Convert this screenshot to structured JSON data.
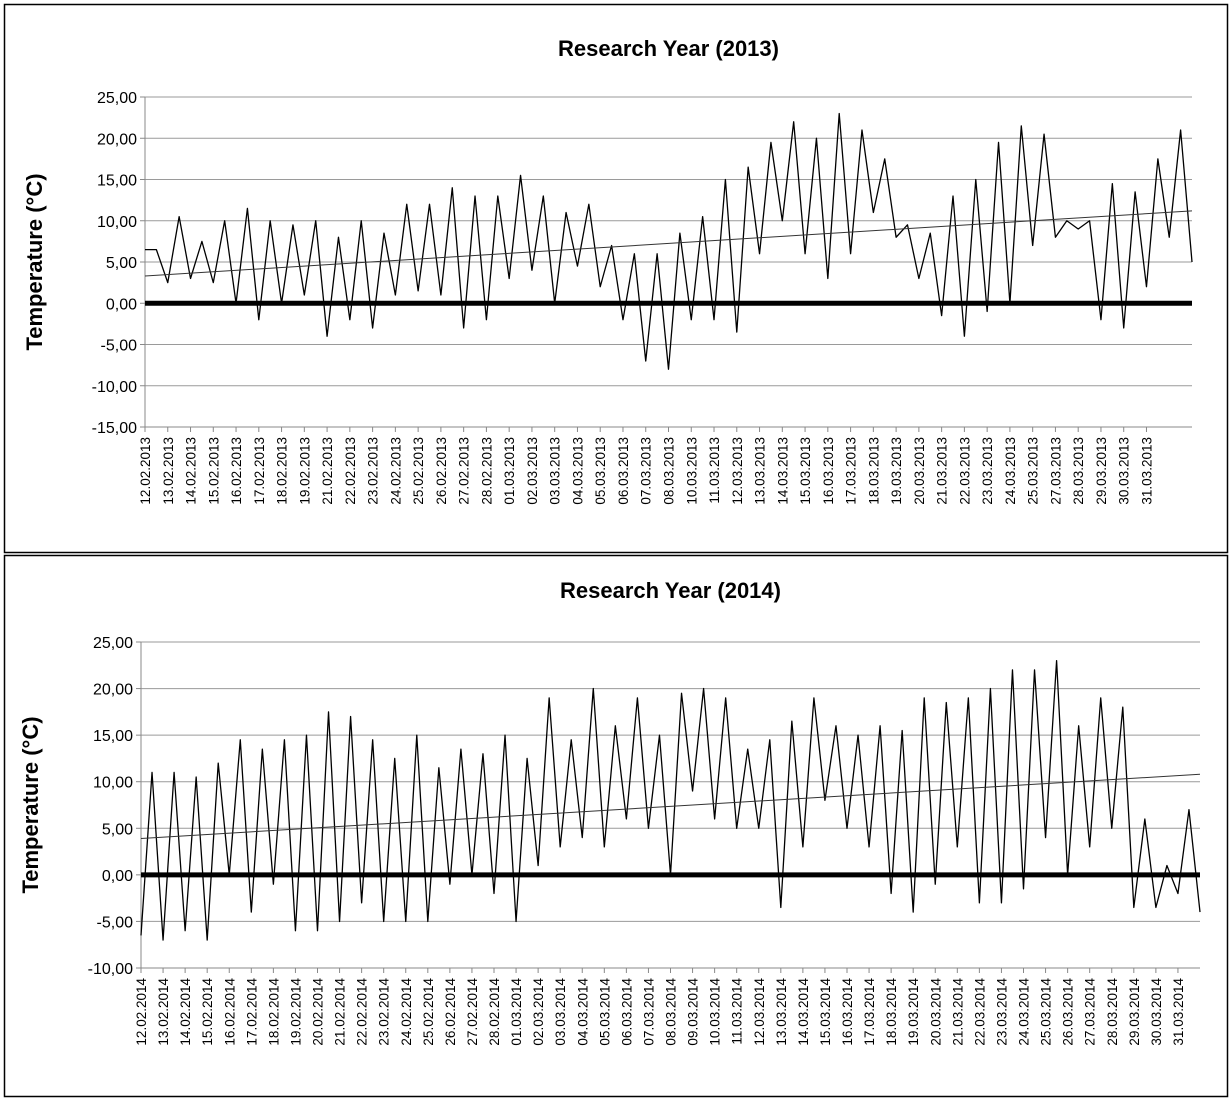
{
  "chart_data": [
    {
      "type": "line",
      "title": "Research Year (2013)",
      "y_label": "Temperature (°C)",
      "ylim": [
        -15,
        25
      ],
      "yticks": [
        {
          "value": -15,
          "label": "-15,00"
        },
        {
          "value": -10,
          "label": "-10,00"
        },
        {
          "value": -5,
          "label": "-5,00"
        },
        {
          "value": 0,
          "label": "0,00"
        },
        {
          "value": 5,
          "label": "5,00"
        },
        {
          "value": 10,
          "label": "10,00"
        },
        {
          "value": 15,
          "label": "15,00"
        },
        {
          "value": 20,
          "label": "20,00"
        },
        {
          "value": 25,
          "label": "25,00"
        }
      ],
      "xlim": [
        0,
        46
      ],
      "xticks": [
        {
          "value": 0,
          "label": "12.02.2013"
        },
        {
          "value": 1,
          "label": "13.02.2013"
        },
        {
          "value": 2,
          "label": "14.02.2013"
        },
        {
          "value": 3,
          "label": "15.02.2013"
        },
        {
          "value": 4,
          "label": "16.02.2013"
        },
        {
          "value": 5,
          "label": "17.02.2013"
        },
        {
          "value": 6,
          "label": "18.02.2013"
        },
        {
          "value": 7,
          "label": "19.02.2013"
        },
        {
          "value": 8,
          "label": "21.02.2013"
        },
        {
          "value": 9,
          "label": "22.02.2013"
        },
        {
          "value": 10,
          "label": "23.02.2013"
        },
        {
          "value": 11,
          "label": "24.02.2013"
        },
        {
          "value": 12,
          "label": "25.02.2013"
        },
        {
          "value": 13,
          "label": "26.02.2013"
        },
        {
          "value": 14,
          "label": "27.02.2013"
        },
        {
          "value": 15,
          "label": "28.02.2013"
        },
        {
          "value": 16,
          "label": "01.03.2013"
        },
        {
          "value": 17,
          "label": "02.03.2013"
        },
        {
          "value": 18,
          "label": "03.03.2013"
        },
        {
          "value": 19,
          "label": "04.03.2013"
        },
        {
          "value": 20,
          "label": "05.03.2013"
        },
        {
          "value": 21,
          "label": "06.03.2013"
        },
        {
          "value": 22,
          "label": "07.03.2013"
        },
        {
          "value": 23,
          "label": "08.03.2013"
        },
        {
          "value": 24,
          "label": "10.03.2013"
        },
        {
          "value": 25,
          "label": "11.03.2013"
        },
        {
          "value": 26,
          "label": "12.03.2013"
        },
        {
          "value": 27,
          "label": "13.03.2013"
        },
        {
          "value": 28,
          "label": "14.03.2013"
        },
        {
          "value": 29,
          "label": "15.03.2013"
        },
        {
          "value": 30,
          "label": "16.03.2013"
        },
        {
          "value": 31,
          "label": "17.03.2013"
        },
        {
          "value": 32,
          "label": "18.03.2013"
        },
        {
          "value": 33,
          "label": "19.03.2013"
        },
        {
          "value": 34,
          "label": "20.03.2013"
        },
        {
          "value": 35,
          "label": "21.03.2013"
        },
        {
          "value": 36,
          "label": "22.03.2013"
        },
        {
          "value": 37,
          "label": "23.03.2013"
        },
        {
          "value": 38,
          "label": "24.03.2013"
        },
        {
          "value": 39,
          "label": "25.03.2013"
        },
        {
          "value": 40,
          "label": "27.03.2013"
        },
        {
          "value": 41,
          "label": "28.03.2013"
        },
        {
          "value": 42,
          "label": "29.03.2013"
        },
        {
          "value": 43,
          "label": "30.03.2013"
        },
        {
          "value": 44,
          "label": "31.03.2013"
        }
      ],
      "grid": true,
      "x": [
        0,
        0.5,
        1,
        1.5,
        2,
        2.5,
        3,
        3.5,
        4,
        4.5,
        5,
        5.5,
        6,
        6.5,
        7,
        7.5,
        8,
        8.5,
        9,
        9.5,
        10,
        10.5,
        11,
        11.5,
        12,
        12.5,
        13,
        13.5,
        14,
        14.5,
        15,
        15.5,
        16,
        16.5,
        17,
        17.5,
        18,
        18.5,
        19,
        19.5,
        20,
        20.5,
        21,
        21.5,
        22,
        22.5,
        23,
        23.5,
        24,
        24.5,
        25,
        25.5,
        26,
        26.5,
        27,
        27.5,
        28,
        28.5,
        29,
        29.5,
        30,
        30.5,
        31,
        31.5,
        32,
        32.5,
        33,
        33.5,
        34,
        34.5,
        35,
        35.5,
        36,
        36.5,
        37,
        37.5,
        38,
        38.5,
        39,
        39.5,
        40,
        40.5,
        41,
        41.5,
        42,
        42.5,
        43,
        43.5,
        44,
        44.5,
        45,
        45.5,
        46
      ],
      "series": [
        {
          "color": "#000000",
          "values": [
            6.5,
            6.5,
            2.5,
            10.5,
            3,
            7.5,
            2.5,
            10,
            0,
            11.5,
            -2,
            10,
            0,
            9.5,
            1,
            10,
            -4,
            8,
            -2,
            10,
            -3,
            8.5,
            1,
            12,
            1.5,
            12,
            1,
            14,
            -3,
            13,
            -2,
            13,
            3,
            15.5,
            4,
            13,
            0,
            11,
            4.5,
            12,
            2,
            7,
            -2,
            6,
            -7,
            6,
            -8,
            8.5,
            -2,
            10.5,
            -2,
            15,
            -3.5,
            16.5,
            6,
            19.5,
            10,
            22,
            6,
            20,
            3,
            23,
            6,
            21,
            11,
            17.5,
            8,
            9.5,
            3,
            8.5,
            -1.5,
            13,
            -4,
            15,
            -1,
            19.5,
            0,
            21.5,
            7,
            20.5,
            8,
            10,
            9,
            10,
            -2,
            14.5,
            -3,
            13.5,
            2,
            17.5,
            8,
            21,
            5
          ]
        }
      ],
      "trendline": {
        "x": [
          0,
          46
        ],
        "values": [
          3.3,
          11.2
        ]
      }
    },
    {
      "type": "line",
      "title": "Research Year (2014)",
      "y_label": "Temperature (°C)",
      "ylim": [
        -10,
        25
      ],
      "yticks": [
        {
          "value": -10,
          "label": "-10,00"
        },
        {
          "value": -5,
          "label": "-5,00"
        },
        {
          "value": 0,
          "label": "0,00"
        },
        {
          "value": 5,
          "label": "5,00"
        },
        {
          "value": 10,
          "label": "10,00"
        },
        {
          "value": 15,
          "label": "15,00"
        },
        {
          "value": 20,
          "label": "20,00"
        },
        {
          "value": 25,
          "label": "25,00"
        }
      ],
      "xlim": [
        0,
        48
      ],
      "xticks": [
        {
          "value": 0,
          "label": "12.02.2014"
        },
        {
          "value": 1,
          "label": "13.02.2014"
        },
        {
          "value": 2,
          "label": "14.02.2014"
        },
        {
          "value": 3,
          "label": "15.02.2014"
        },
        {
          "value": 4,
          "label": "16.02.2014"
        },
        {
          "value": 5,
          "label": "17.02.2014"
        },
        {
          "value": 6,
          "label": "18.02.2014"
        },
        {
          "value": 7,
          "label": "19.02.2014"
        },
        {
          "value": 8,
          "label": "20.02.2014"
        },
        {
          "value": 9,
          "label": "21.02.2014"
        },
        {
          "value": 10,
          "label": "22.02.2014"
        },
        {
          "value": 11,
          "label": "23.02.2014"
        },
        {
          "value": 12,
          "label": "24.02.2014"
        },
        {
          "value": 13,
          "label": "25.02.2014"
        },
        {
          "value": 14,
          "label": "26.02.2014"
        },
        {
          "value": 15,
          "label": "27.02.2014"
        },
        {
          "value": 16,
          "label": "28.02.2014"
        },
        {
          "value": 17,
          "label": "01.03.2014"
        },
        {
          "value": 18,
          "label": "02.03.2014"
        },
        {
          "value": 19,
          "label": "03.03.2014"
        },
        {
          "value": 20,
          "label": "04.03.2014"
        },
        {
          "value": 21,
          "label": "05.03.2014"
        },
        {
          "value": 22,
          "label": "06.03.2014"
        },
        {
          "value": 23,
          "label": "07.03.2014"
        },
        {
          "value": 24,
          "label": "08.03.2014"
        },
        {
          "value": 25,
          "label": "09.03.2014"
        },
        {
          "value": 26,
          "label": "10.03.2014"
        },
        {
          "value": 27,
          "label": "11.03.2014"
        },
        {
          "value": 28,
          "label": "12.03.2014"
        },
        {
          "value": 29,
          "label": "13.03.2014"
        },
        {
          "value": 30,
          "label": "14.03.2014"
        },
        {
          "value": 31,
          "label": "15.03.2014"
        },
        {
          "value": 32,
          "label": "16.03.2014"
        },
        {
          "value": 33,
          "label": "17.03.2014"
        },
        {
          "value": 34,
          "label": "18.03.2014"
        },
        {
          "value": 35,
          "label": "19.03.2014"
        },
        {
          "value": 36,
          "label": "20.03.2014"
        },
        {
          "value": 37,
          "label": "21.03.2014"
        },
        {
          "value": 38,
          "label": "22.03.2014"
        },
        {
          "value": 39,
          "label": "23.03.2014"
        },
        {
          "value": 40,
          "label": "24.03.2014"
        },
        {
          "value": 41,
          "label": "25.03.2014"
        },
        {
          "value": 42,
          "label": "26.03.2014"
        },
        {
          "value": 43,
          "label": "27.03.2014"
        },
        {
          "value": 44,
          "label": "28.03.2014"
        },
        {
          "value": 45,
          "label": "29.03.2014"
        },
        {
          "value": 46,
          "label": "30.03.2014"
        },
        {
          "value": 47,
          "label": "31.03.2014"
        }
      ],
      "grid": true,
      "x": [
        0,
        0.5,
        1,
        1.5,
        2,
        2.5,
        3,
        3.5,
        4,
        4.5,
        5,
        5.5,
        6,
        6.5,
        7,
        7.5,
        8,
        8.5,
        9,
        9.5,
        10,
        10.5,
        11,
        11.5,
        12,
        12.5,
        13,
        13.5,
        14,
        14.5,
        15,
        15.5,
        16,
        16.5,
        17,
        17.5,
        18,
        18.5,
        19,
        19.5,
        20,
        20.5,
        21,
        21.5,
        22,
        22.5,
        23,
        23.5,
        24,
        24.5,
        25,
        25.5,
        26,
        26.5,
        27,
        27.5,
        28,
        28.5,
        29,
        29.5,
        30,
        30.5,
        31,
        31.5,
        32,
        32.5,
        33,
        33.5,
        34,
        34.5,
        35,
        35.5,
        36,
        36.5,
        37,
        37.5,
        38,
        38.5,
        39,
        39.5,
        40,
        40.5,
        41,
        41.5,
        42,
        42.5,
        43,
        43.5,
        44,
        44.5,
        45,
        45.5,
        46,
        46.5,
        47,
        47.5,
        48
      ],
      "series": [
        {
          "color": "#000000",
          "values": [
            -6.5,
            11,
            -7,
            11,
            -6,
            10.5,
            -7,
            12,
            0,
            14.5,
            -4,
            13.5,
            -1,
            14.5,
            -6,
            15,
            -6,
            17.5,
            -5,
            17,
            -3,
            14.5,
            -5,
            12.5,
            -5,
            15,
            -5,
            11.5,
            -1,
            13.5,
            0,
            13,
            -2,
            15,
            -5,
            12.5,
            1,
            19,
            3,
            14.5,
            4,
            20,
            3,
            16,
            6,
            19,
            5,
            15,
            0,
            19.5,
            9,
            20,
            6,
            19,
            5,
            13.5,
            5,
            14.5,
            -3.5,
            16.5,
            3,
            19,
            8,
            16,
            5,
            15,
            3,
            16,
            -2,
            15.5,
            -4,
            19,
            -1,
            18.5,
            3,
            19,
            -3,
            20,
            -3,
            22,
            -1.5,
            22,
            4,
            23,
            0,
            16,
            3,
            19,
            5,
            18,
            -3.5,
            6,
            -3.5,
            1,
            -2,
            7,
            -4
          ]
        }
      ],
      "trendline": {
        "x": [
          0,
          48
        ],
        "values": [
          3.9,
          10.8
        ]
      }
    }
  ]
}
